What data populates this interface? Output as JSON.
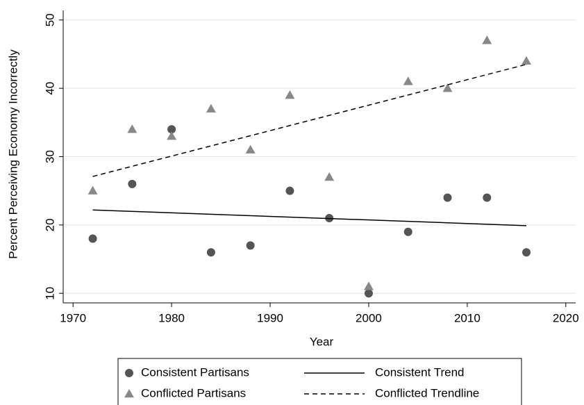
{
  "chart_data": {
    "type": "scatter",
    "x_label": "Year",
    "y_label": "Percent Perceiving Economy Incorrectly",
    "xlim": [
      1969,
      2021
    ],
    "ylim": [
      8.6,
      51.4
    ],
    "xticks": [
      1970,
      1980,
      1990,
      2000,
      2010,
      2020
    ],
    "yticks": [
      10,
      20,
      30,
      40,
      50
    ],
    "grid": true,
    "legend": "bottom",
    "series": [
      {
        "name": "Consistent Partisans",
        "type": "scatter",
        "marker": "circle",
        "color": "#555555",
        "x": [
          1972,
          1976,
          1980,
          1984,
          1988,
          1992,
          1996,
          2000,
          2004,
          2008,
          2012,
          2016
        ],
        "values": [
          18,
          26,
          34,
          16,
          17,
          25,
          21,
          10,
          19,
          24,
          24,
          16
        ]
      },
      {
        "name": "Conflicted Partisans",
        "type": "scatter",
        "marker": "triangle",
        "color": "#888888",
        "x": [
          1972,
          1976,
          1980,
          1984,
          1988,
          1992,
          1996,
          2000,
          2004,
          2008,
          2012,
          2016
        ],
        "values": [
          25,
          34,
          33,
          37,
          31,
          39,
          27,
          11,
          41,
          40,
          47,
          44
        ]
      },
      {
        "name": "Consistent Trend",
        "type": "line",
        "dashed": false,
        "color": "#000000",
        "x": [
          1972,
          2016
        ],
        "values": [
          22.2,
          19.9
        ]
      },
      {
        "name": "Conflicted Trendline",
        "type": "line",
        "dashed": true,
        "color": "#000000",
        "x": [
          1972,
          2016
        ],
        "values": [
          27.1,
          43.5
        ]
      }
    ]
  }
}
